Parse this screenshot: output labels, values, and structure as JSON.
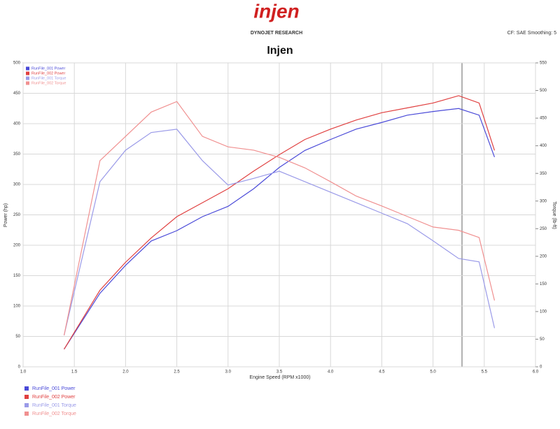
{
  "brand": "injen",
  "brand_subtitle": "DYNOJET RESEARCH",
  "settings": "CF: SAE  Smoothing: 5",
  "chart_data": {
    "type": "line",
    "title": "Injen",
    "x_label": "Engine Speed (RPM x1000)",
    "y_label": "Power (hp)",
    "y2_label": "Torque (lb-ft)",
    "x": [
      1.4,
      1.75,
      2.0,
      2.25,
      2.5,
      2.75,
      3.0,
      3.25,
      3.5,
      3.75,
      4.0,
      4.25,
      4.5,
      4.75,
      5.0,
      5.25,
      5.45,
      5.6
    ],
    "xlim": [
      1.0,
      6.0
    ],
    "xticks": [
      {
        "value": 1.0,
        "label": "1.0"
      },
      1.5,
      {
        "value": 2.0,
        "label": "2.0"
      },
      2.5,
      {
        "value": 3.0,
        "label": "3.0"
      },
      3.5,
      {
        "value": 4.0,
        "label": "4.0"
      },
      4.5,
      {
        "value": 5.0,
        "label": "5.0"
      },
      5.5,
      {
        "value": 6.0,
        "label": "6.0"
      }
    ],
    "ylim": [
      0,
      500
    ],
    "yticks": [
      0,
      50,
      100,
      150,
      200,
      250,
      300,
      350,
      400,
      450,
      500
    ],
    "y2lim": [
      0,
      550
    ],
    "y2ticks": [
      0,
      50,
      100,
      150,
      200,
      250,
      300,
      350,
      400,
      450,
      500,
      550
    ],
    "grid": true,
    "series": [
      {
        "name": "RunFile_001 Power",
        "color": "#4a4ad8",
        "axis": "y",
        "values": [
          29,
          121,
          167,
          207,
          224,
          247,
          264,
          293,
          328,
          356,
          374,
          391,
          402,
          414,
          420,
          425,
          414,
          345
        ]
      },
      {
        "name": "RunFile_002 Power",
        "color": "#e04040",
        "axis": "y",
        "values": [
          29,
          126,
          172,
          212,
          247,
          270,
          293,
          322,
          349,
          374,
          391,
          406,
          418,
          426,
          434,
          446,
          434,
          356
        ]
      },
      {
        "name": "RunFile_001 Torque",
        "color": "#9a9ae8",
        "axis": "y2",
        "values": [
          57,
          335,
          392,
          424,
          430,
          373,
          329,
          341,
          354,
          335,
          316,
          297,
          278,
          259,
          228,
          196,
          190,
          70
        ]
      },
      {
        "name": "RunFile_002 Torque",
        "color": "#f09090",
        "axis": "y2",
        "values": [
          57,
          373,
          417,
          461,
          480,
          417,
          398,
          392,
          379,
          360,
          335,
          309,
          291,
          272,
          253,
          247,
          234,
          120
        ]
      }
    ]
  }
}
